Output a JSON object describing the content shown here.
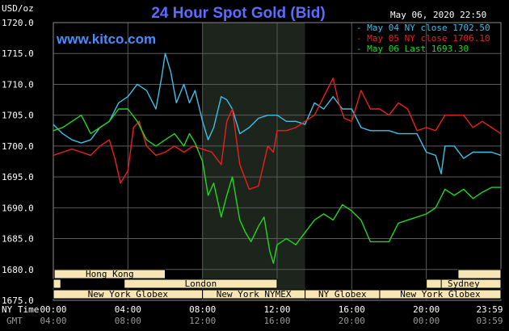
{
  "header": {
    "unit": "USD/oz",
    "title": "24 Hour Spot Gold (Bid)",
    "date": "May 06, 2020 22:50",
    "site": "www.kitco.com"
  },
  "legend": {
    "placement": "top-right",
    "items": [
      {
        "text": "May 04 NY close 1702.50",
        "color": "#3fbfe8"
      },
      {
        "text": "May 05 NY close 1706.10",
        "color": "#e82020"
      },
      {
        "text": "May 06 Last 1693.30",
        "color": "#22d622"
      }
    ]
  },
  "time_labels": {
    "ny_label": "NY Time",
    "gmt_label": "GMT",
    "ny": [
      "00:00",
      "04:00",
      "08:00",
      "12:00",
      "16:00",
      "20:00",
      "23:59"
    ],
    "gmt": [
      "04:00",
      "08:00",
      "12:00",
      "16:00",
      "20:00",
      "00:00",
      "03:59"
    ]
  },
  "sessions": [
    {
      "label": "Hong Kong",
      "start": 0.05,
      "end": 6.0
    },
    {
      "label": "Hong Kong",
      "start": 21.7,
      "end": 24.0
    },
    {
      "label": "London",
      "start": 3.8,
      "end": 12.0
    },
    {
      "label": "London",
      "start": 0.0,
      "end": 0.4
    },
    {
      "label": "Sydney",
      "start": 20.0,
      "end": 24.0
    },
    {
      "label": "London",
      "start": 20.0,
      "end": 20.8
    },
    {
      "label": "New York Globex",
      "start": 0.0,
      "end": 8.0
    },
    {
      "label": "New York NYMEX",
      "start": 8.0,
      "end": 13.5
    },
    {
      "label": "NY Globex",
      "start": 13.5,
      "end": 17.5
    },
    {
      "label": "New York Globex",
      "start": 17.5,
      "end": 24.0
    }
  ],
  "colors": {
    "background": "#000000",
    "grid": "#5a5a5a",
    "nymex_band": "#1c241c",
    "session_box": "#f5e6b3",
    "axis_text": "#ffffff"
  },
  "chart_data": {
    "type": "line",
    "x_unit": "hours (NY Time)",
    "xlim": [
      0,
      24
    ],
    "ylim": [
      1675,
      1720
    ],
    "yticks": [
      "1675.0",
      "1680.0",
      "1685.0",
      "1690.0",
      "1695.0",
      "1700.0",
      "1705.0",
      "1710.0",
      "1715.0",
      "1720.0"
    ],
    "grid": true,
    "series": [
      {
        "name": "May 04 NY close 1702.50",
        "color": "#3fbfe8",
        "x": [
          0,
          0.5,
          1,
          1.5,
          2,
          2.5,
          3,
          3.5,
          4,
          4.5,
          5,
          5.5,
          5.8,
          6,
          6.3,
          6.6,
          7,
          7.3,
          7.6,
          8,
          8.3,
          8.6,
          9,
          9.3,
          9.6,
          10,
          10.5,
          11,
          11.5,
          12,
          12.5,
          13,
          13.5,
          14,
          14.5,
          15,
          15.5,
          16,
          16.5,
          17,
          17.5,
          18,
          18.5,
          19,
          19.5,
          20,
          20.5,
          20.8,
          21,
          21.5,
          22,
          22.5,
          23,
          23.5,
          24
        ],
        "y": [
          1703.5,
          1702,
          1701,
          1700.5,
          1701,
          1703,
          1704,
          1707,
          1708,
          1710,
          1709,
          1706,
          1711,
          1715,
          1712,
          1707,
          1710,
          1707,
          1709,
          1704,
          1701,
          1703,
          1708,
          1707.5,
          1706,
          1702,
          1703,
          1704.5,
          1705,
          1705,
          1704,
          1704,
          1703.5,
          1707,
          1706,
          1708,
          1706,
          1706,
          1703,
          1702.5,
          1702.5,
          1702.5,
          1702,
          1702,
          1702,
          1699,
          1698.5,
          1695.5,
          1700,
          1700,
          1698,
          1699,
          1699,
          1699,
          1698.5
        ]
      },
      {
        "name": "May 05 NY close 1706.10",
        "color": "#e82020",
        "x": [
          0,
          0.5,
          1,
          1.5,
          2,
          2.5,
          3,
          3.3,
          3.6,
          4,
          4.3,
          4.6,
          5,
          5.5,
          6,
          6.5,
          7,
          7.5,
          8,
          8.5,
          9,
          9.3,
          9.6,
          10,
          10.5,
          11,
          11.5,
          11.8,
          12,
          12.5,
          13,
          13.5,
          14,
          14.5,
          15,
          15.3,
          15.6,
          16,
          16.5,
          17,
          17.5,
          18,
          18.5,
          19,
          19.5,
          20,
          20.5,
          21,
          21.5,
          22,
          22.5,
          23,
          23.5,
          24
        ],
        "y": [
          1698.5,
          1699,
          1699.5,
          1699,
          1698.5,
          1700,
          1701,
          1698,
          1694,
          1696,
          1703,
          1704,
          1700,
          1698.5,
          1699,
          1700,
          1699,
          1700,
          1699.5,
          1699,
          1697,
          1704,
          1706,
          1697,
          1693,
          1693.5,
          1700,
          1699,
          1702.5,
          1702.5,
          1703,
          1704,
          1705,
          1708,
          1711,
          1707,
          1704.5,
          1704,
          1709,
          1706,
          1706,
          1705,
          1707,
          1706,
          1702.5,
          1703,
          1702.5,
          1705,
          1705,
          1705,
          1703,
          1704,
          1703,
          1702
        ]
      },
      {
        "name": "May 06 Last 1693.30",
        "color": "#22d622",
        "x": [
          0,
          0.5,
          1,
          1.5,
          2,
          2.5,
          3,
          3.5,
          4,
          4.5,
          5,
          5.5,
          6,
          6.5,
          7,
          7.3,
          7.6,
          8,
          8.3,
          8.6,
          9,
          9.3,
          9.6,
          10,
          10.3,
          10.6,
          11,
          11.3,
          11.6,
          11.8,
          12,
          12.5,
          13,
          13.5,
          14,
          14.5,
          15,
          15.5,
          16,
          16.5,
          17,
          17.5,
          18,
          18.5,
          19,
          19.5,
          20,
          20.5,
          21,
          21.5,
          22,
          22.5,
          23,
          23.5,
          24
        ],
        "y": [
          1702.5,
          1703,
          1704,
          1705,
          1702,
          1703,
          1704,
          1706,
          1706,
          1704,
          1701,
          1700,
          1701,
          1702,
          1700,
          1702,
          1700.5,
          1697.5,
          1692,
          1694,
          1688.5,
          1692,
          1695,
          1688,
          1686,
          1684.5,
          1687,
          1688.5,
          1683,
          1681,
          1684,
          1685,
          1684,
          1686,
          1688,
          1689,
          1688,
          1690.5,
          1689.5,
          1688,
          1684.5,
          1684.5,
          1684.5,
          1687.5,
          1688,
          1688.5,
          1689,
          1690,
          1693,
          1692,
          1693,
          1691.5,
          1692.5,
          1693.3,
          1693.3
        ]
      }
    ]
  }
}
